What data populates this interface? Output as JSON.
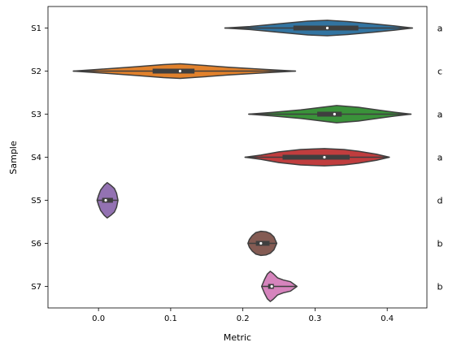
{
  "chart_data": {
    "type": "violin",
    "orientation": "horizontal",
    "xlabel": "Metric",
    "ylabel": "Sample",
    "xlim": [
      -0.07,
      0.455
    ],
    "xticks": [
      0.0,
      0.1,
      0.2,
      0.3,
      0.4
    ],
    "xtick_labels": [
      "0.0",
      "0.1",
      "0.2",
      "0.3",
      "0.4"
    ],
    "grid": false,
    "legend": "none",
    "categories": [
      "S1",
      "S2",
      "S3",
      "S4",
      "S5",
      "S6",
      "S7"
    ],
    "violins": [
      {
        "name": "S1",
        "min": 0.175,
        "q1": 0.27,
        "median": 0.317,
        "q3": 0.36,
        "max": 0.435,
        "color": "#3274a1",
        "letter": "a",
        "profile": [
          [
            0.175,
            0.0
          ],
          [
            0.21,
            0.07
          ],
          [
            0.25,
            0.2
          ],
          [
            0.29,
            0.32
          ],
          [
            0.317,
            0.36
          ],
          [
            0.345,
            0.3
          ],
          [
            0.38,
            0.2
          ],
          [
            0.41,
            0.1
          ],
          [
            0.435,
            0.0
          ]
        ]
      },
      {
        "name": "S2",
        "min": -0.035,
        "q1": 0.075,
        "median": 0.113,
        "q3": 0.133,
        "max": 0.273,
        "color": "#e1812c",
        "letter": "c",
        "profile": [
          [
            -0.035,
            0.0
          ],
          [
            0.0,
            0.08
          ],
          [
            0.05,
            0.2
          ],
          [
            0.09,
            0.3
          ],
          [
            0.113,
            0.34
          ],
          [
            0.14,
            0.28
          ],
          [
            0.18,
            0.18
          ],
          [
            0.23,
            0.08
          ],
          [
            0.273,
            0.0
          ]
        ]
      },
      {
        "name": "S3",
        "min": 0.208,
        "q1": 0.303,
        "median": 0.327,
        "q3": 0.337,
        "max": 0.433,
        "color": "#3a923a",
        "letter": "a",
        "profile": [
          [
            0.208,
            0.0
          ],
          [
            0.24,
            0.08
          ],
          [
            0.28,
            0.2
          ],
          [
            0.31,
            0.32
          ],
          [
            0.33,
            0.4
          ],
          [
            0.36,
            0.32
          ],
          [
            0.39,
            0.18
          ],
          [
            0.41,
            0.09
          ],
          [
            0.433,
            0.0
          ]
        ]
      },
      {
        "name": "S4",
        "min": 0.203,
        "q1": 0.255,
        "median": 0.313,
        "q3": 0.348,
        "max": 0.403,
        "color": "#c03d3e",
        "letter": "a",
        "profile": [
          [
            0.203,
            0.0
          ],
          [
            0.225,
            0.1
          ],
          [
            0.25,
            0.25
          ],
          [
            0.28,
            0.36
          ],
          [
            0.313,
            0.4
          ],
          [
            0.34,
            0.36
          ],
          [
            0.36,
            0.28
          ],
          [
            0.385,
            0.14
          ],
          [
            0.403,
            0.0
          ]
        ]
      },
      {
        "name": "S5",
        "min": -0.002,
        "q1": 0.005,
        "median": 0.01,
        "q3": 0.02,
        "max": 0.027,
        "color": "#9372b2",
        "letter": "d",
        "profile": [
          [
            -0.002,
            0.0
          ],
          [
            0.0,
            0.22
          ],
          [
            0.003,
            0.48
          ],
          [
            0.008,
            0.7
          ],
          [
            0.012,
            0.82
          ],
          [
            0.017,
            0.7
          ],
          [
            0.022,
            0.55
          ],
          [
            0.025,
            0.33
          ],
          [
            0.027,
            0.0
          ]
        ]
      },
      {
        "name": "S6",
        "min": 0.207,
        "q1": 0.218,
        "median": 0.225,
        "q3": 0.237,
        "max": 0.247,
        "color": "#845b53",
        "letter": "b",
        "profile": [
          [
            0.207,
            0.0
          ],
          [
            0.209,
            0.18
          ],
          [
            0.213,
            0.36
          ],
          [
            0.218,
            0.5
          ],
          [
            0.225,
            0.56
          ],
          [
            0.232,
            0.54
          ],
          [
            0.238,
            0.46
          ],
          [
            0.243,
            0.3
          ],
          [
            0.247,
            0.0
          ]
        ]
      },
      {
        "name": "S7",
        "min": 0.226,
        "q1": 0.235,
        "median": 0.24,
        "q3": 0.243,
        "max": 0.275,
        "color": "#d684bd",
        "letter": "b",
        "profile": [
          [
            0.226,
            0.0
          ],
          [
            0.23,
            0.32
          ],
          [
            0.234,
            0.58
          ],
          [
            0.238,
            0.7
          ],
          [
            0.242,
            0.6
          ],
          [
            0.248,
            0.4
          ],
          [
            0.256,
            0.3
          ],
          [
            0.266,
            0.22
          ],
          [
            0.275,
            0.0
          ]
        ]
      }
    ]
  }
}
